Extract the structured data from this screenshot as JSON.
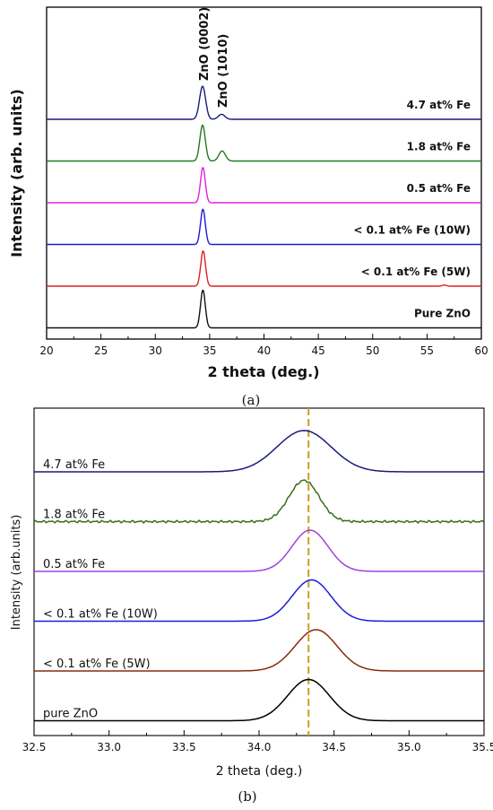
{
  "panels": [
    {
      "id": "a",
      "caption": "(a)",
      "ylabel": "Intensity (arb. units)",
      "xlabel": "2 theta (deg.)",
      "peak_labels": [
        "ZnO (0002)",
        "ZnO (1010)"
      ]
    },
    {
      "id": "b",
      "caption": "(b)",
      "ylabel": "Intensity (arb.units)",
      "xlabel": "2 theta (deg.)"
    }
  ],
  "chart_data": [
    {
      "type": "line",
      "title": "",
      "xlabel": "2 theta (deg.)",
      "ylabel": "Intensity (arb. units)",
      "xlim": [
        20,
        60
      ],
      "x_ticks": [
        20,
        25,
        30,
        35,
        40,
        45,
        50,
        55,
        60
      ],
      "grid": false,
      "legend": "none",
      "annotations": [
        {
          "text": "ZnO (0002)",
          "x": 34.4
        },
        {
          "text": "ZnO (1010)",
          "x": 36.1
        }
      ],
      "series": [
        {
          "name": "4.7 at% Fe",
          "color": "#1a1a7a",
          "peaks": [
            {
              "x": 34.35,
              "height": 0.92,
              "width": 0.28
            },
            {
              "x": 36.1,
              "height": 0.14,
              "width": 0.3
            }
          ]
        },
        {
          "name": "1.8 at% Fe",
          "color": "#1e7a1e",
          "peaks": [
            {
              "x": 34.35,
              "height": 1.0,
              "width": 0.25
            },
            {
              "x": 36.15,
              "height": 0.28,
              "width": 0.3
            }
          ]
        },
        {
          "name": "0.5 at% Fe",
          "color": "#e020e0",
          "peaks": [
            {
              "x": 34.38,
              "height": 0.98,
              "width": 0.22
            }
          ]
        },
        {
          "name": "< 0.1 at% Fe (10W)",
          "color": "#1c1cd0",
          "peaks": [
            {
              "x": 34.38,
              "height": 0.98,
              "width": 0.22
            }
          ]
        },
        {
          "name": "< 0.1 at% Fe (5W)",
          "color": "#e02020",
          "peaks": [
            {
              "x": 34.4,
              "height": 0.98,
              "width": 0.22
            },
            {
              "x": 56.6,
              "height": 0.03,
              "width": 0.2
            }
          ]
        },
        {
          "name": "Pure ZnO",
          "color": "#111111",
          "peaks": [
            {
              "x": 34.38,
              "height": 1.05,
              "width": 0.22
            }
          ]
        }
      ]
    },
    {
      "type": "line",
      "title": "",
      "xlabel": "2 theta (deg.)",
      "ylabel": "Intensity (arb.units)",
      "xlim": [
        32.5,
        35.5
      ],
      "x_ticks": [
        "32.5",
        "33.0",
        "33.5",
        "34.0",
        "34.5",
        "35.0",
        "35.5"
      ],
      "reference_line_x": 34.33,
      "grid": false,
      "legend": "none",
      "series": [
        {
          "name": "4.7 at% Fe",
          "color": "#1a1a7a",
          "center": 34.3,
          "sigma": 0.18,
          "height": 1.0,
          "noise": 0.0
        },
        {
          "name": "1.8 at% Fe",
          "color": "#3a6e18",
          "center": 34.3,
          "sigma": 0.1,
          "height": 1.0,
          "noise": 0.03
        },
        {
          "name": "0.5 at% Fe",
          "color": "#a040e0",
          "center": 34.34,
          "sigma": 0.12,
          "height": 1.0,
          "noise": 0.0
        },
        {
          "name": "< 0.1 at% Fe (10W)",
          "color": "#1c1cd8",
          "center": 34.35,
          "sigma": 0.13,
          "height": 1.0,
          "noise": 0.0
        },
        {
          "name": "< 0.1 at% Fe (5W)",
          "color": "#8b2a10",
          "center": 34.38,
          "sigma": 0.14,
          "height": 1.0,
          "noise": 0.0
        },
        {
          "name": "pure ZnO",
          "color": "#000000",
          "center": 34.33,
          "sigma": 0.14,
          "height": 1.0,
          "noise": 0.0
        }
      ]
    }
  ]
}
